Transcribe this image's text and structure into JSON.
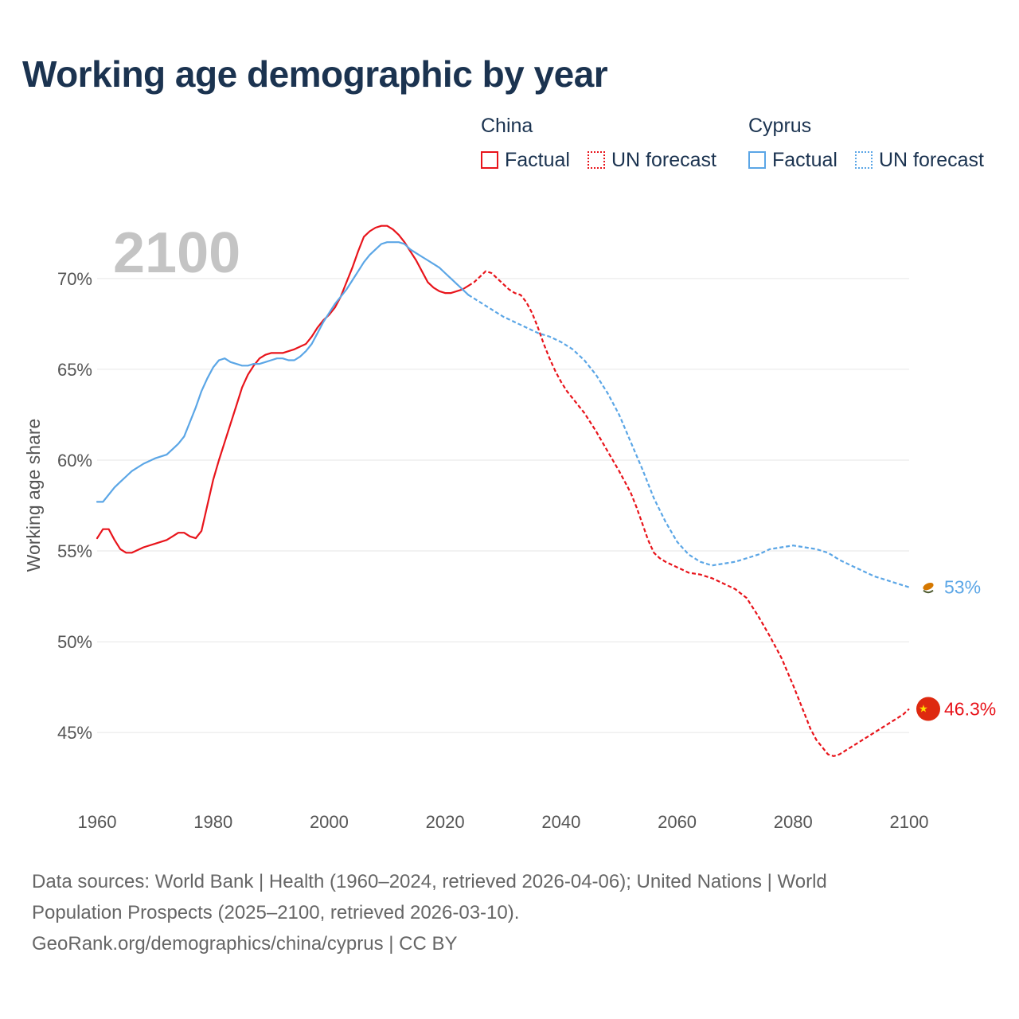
{
  "title": "Working age demographic by year",
  "legend": {
    "groups": [
      {
        "name": "China",
        "color": "#e8141b",
        "items": [
          {
            "label": "Factual",
            "style": "solid"
          },
          {
            "label": "UN forecast",
            "style": "dotted"
          }
        ]
      },
      {
        "name": "Cyprus",
        "color": "#5ba6e6",
        "items": [
          {
            "label": "Factual",
            "style": "solid"
          },
          {
            "label": "UN forecast",
            "style": "dotted"
          }
        ]
      }
    ]
  },
  "year_label": "2100",
  "chart_data": {
    "type": "line",
    "title": "Working age demographic by year",
    "xlabel": "",
    "ylabel": "Working age share",
    "xlim": [
      1960,
      2100
    ],
    "ylim": [
      41.5,
      73.5
    ],
    "x_ticks": [
      1960,
      1980,
      2000,
      2020,
      2040,
      2060,
      2080,
      2100
    ],
    "y_ticks": [
      45,
      50,
      55,
      60,
      65,
      70
    ],
    "y_tick_labels": [
      "45%",
      "50%",
      "55%",
      "60%",
      "65%",
      "70%"
    ],
    "factual_end_year": 2024,
    "grid": true,
    "series": [
      {
        "name": "China",
        "color": "#e8141b",
        "end_label": "46.3%",
        "flag_icon": "china-flag-icon",
        "points": [
          [
            1960,
            55.7
          ],
          [
            1961,
            56.2
          ],
          [
            1962,
            56.2
          ],
          [
            1963,
            55.6
          ],
          [
            1964,
            55.1
          ],
          [
            1965,
            54.9
          ],
          [
            1966,
            54.9
          ],
          [
            1968,
            55.2
          ],
          [
            1970,
            55.4
          ],
          [
            1972,
            55.6
          ],
          [
            1973,
            55.8
          ],
          [
            1974,
            56.0
          ],
          [
            1975,
            56.0
          ],
          [
            1976,
            55.8
          ],
          [
            1977,
            55.7
          ],
          [
            1978,
            56.1
          ],
          [
            1979,
            57.5
          ],
          [
            1980,
            58.9
          ],
          [
            1981,
            60.0
          ],
          [
            1982,
            61.0
          ],
          [
            1983,
            62.0
          ],
          [
            1984,
            63.0
          ],
          [
            1985,
            64.0
          ],
          [
            1986,
            64.7
          ],
          [
            1987,
            65.2
          ],
          [
            1988,
            65.6
          ],
          [
            1989,
            65.8
          ],
          [
            1990,
            65.9
          ],
          [
            1992,
            65.9
          ],
          [
            1994,
            66.1
          ],
          [
            1996,
            66.4
          ],
          [
            1997,
            66.8
          ],
          [
            1998,
            67.3
          ],
          [
            1999,
            67.7
          ],
          [
            2000,
            68.0
          ],
          [
            2001,
            68.4
          ],
          [
            2002,
            69.0
          ],
          [
            2003,
            69.8
          ],
          [
            2004,
            70.6
          ],
          [
            2005,
            71.5
          ],
          [
            2006,
            72.3
          ],
          [
            2007,
            72.6
          ],
          [
            2008,
            72.8
          ],
          [
            2009,
            72.9
          ],
          [
            2010,
            72.9
          ],
          [
            2011,
            72.7
          ],
          [
            2012,
            72.4
          ],
          [
            2013,
            72.0
          ],
          [
            2014,
            71.5
          ],
          [
            2015,
            71.0
          ],
          [
            2016,
            70.4
          ],
          [
            2017,
            69.8
          ],
          [
            2018,
            69.5
          ],
          [
            2019,
            69.3
          ],
          [
            2020,
            69.2
          ],
          [
            2021,
            69.2
          ],
          [
            2022,
            69.3
          ],
          [
            2023,
            69.4
          ],
          [
            2024,
            69.6
          ],
          [
            2025,
            69.8
          ],
          [
            2026,
            70.1
          ],
          [
            2027,
            70.4
          ],
          [
            2028,
            70.3
          ],
          [
            2029,
            70.0
          ],
          [
            2030,
            69.7
          ],
          [
            2031,
            69.4
          ],
          [
            2032,
            69.2
          ],
          [
            2033,
            69.1
          ],
          [
            2034,
            68.7
          ],
          [
            2035,
            68.1
          ],
          [
            2036,
            67.3
          ],
          [
            2037,
            66.4
          ],
          [
            2038,
            65.6
          ],
          [
            2039,
            64.9
          ],
          [
            2040,
            64.3
          ],
          [
            2041,
            63.8
          ],
          [
            2042,
            63.4
          ],
          [
            2044,
            62.6
          ],
          [
            2046,
            61.6
          ],
          [
            2048,
            60.5
          ],
          [
            2050,
            59.4
          ],
          [
            2052,
            58.2
          ],
          [
            2053,
            57.4
          ],
          [
            2054,
            56.5
          ],
          [
            2055,
            55.6
          ],
          [
            2056,
            54.9
          ],
          [
            2057,
            54.6
          ],
          [
            2058,
            54.4
          ],
          [
            2060,
            54.1
          ],
          [
            2062,
            53.8
          ],
          [
            2064,
            53.7
          ],
          [
            2066,
            53.5
          ],
          [
            2068,
            53.2
          ],
          [
            2070,
            52.9
          ],
          [
            2072,
            52.4
          ],
          [
            2074,
            51.4
          ],
          [
            2076,
            50.3
          ],
          [
            2078,
            49.1
          ],
          [
            2080,
            47.6
          ],
          [
            2082,
            46.0
          ],
          [
            2083,
            45.2
          ],
          [
            2084,
            44.6
          ],
          [
            2085,
            44.2
          ],
          [
            2086,
            43.8
          ],
          [
            2087,
            43.7
          ],
          [
            2088,
            43.8
          ],
          [
            2090,
            44.2
          ],
          [
            2092,
            44.6
          ],
          [
            2094,
            45.0
          ],
          [
            2096,
            45.4
          ],
          [
            2098,
            45.8
          ],
          [
            2099,
            46.0
          ],
          [
            2100,
            46.3
          ]
        ]
      },
      {
        "name": "Cyprus",
        "color": "#5ba6e6",
        "end_label": "53%",
        "flag_icon": "cyprus-flag-icon",
        "points": [
          [
            1960,
            57.7
          ],
          [
            1961,
            57.7
          ],
          [
            1962,
            58.1
          ],
          [
            1963,
            58.5
          ],
          [
            1964,
            58.8
          ],
          [
            1965,
            59.1
          ],
          [
            1966,
            59.4
          ],
          [
            1968,
            59.8
          ],
          [
            1970,
            60.1
          ],
          [
            1972,
            60.3
          ],
          [
            1973,
            60.6
          ],
          [
            1974,
            60.9
          ],
          [
            1975,
            61.3
          ],
          [
            1976,
            62.1
          ],
          [
            1977,
            62.9
          ],
          [
            1978,
            63.8
          ],
          [
            1979,
            64.5
          ],
          [
            1980,
            65.1
          ],
          [
            1981,
            65.5
          ],
          [
            1982,
            65.6
          ],
          [
            1983,
            65.4
          ],
          [
            1984,
            65.3
          ],
          [
            1985,
            65.2
          ],
          [
            1986,
            65.2
          ],
          [
            1987,
            65.3
          ],
          [
            1988,
            65.3
          ],
          [
            1989,
            65.4
          ],
          [
            1990,
            65.5
          ],
          [
            1991,
            65.6
          ],
          [
            1992,
            65.6
          ],
          [
            1993,
            65.5
          ],
          [
            1994,
            65.5
          ],
          [
            1995,
            65.7
          ],
          [
            1996,
            66.0
          ],
          [
            1997,
            66.4
          ],
          [
            1998,
            67.0
          ],
          [
            1999,
            67.6
          ],
          [
            2000,
            68.1
          ],
          [
            2001,
            68.6
          ],
          [
            2002,
            69.0
          ],
          [
            2003,
            69.4
          ],
          [
            2004,
            69.9
          ],
          [
            2005,
            70.4
          ],
          [
            2006,
            70.9
          ],
          [
            2007,
            71.3
          ],
          [
            2008,
            71.6
          ],
          [
            2009,
            71.9
          ],
          [
            2010,
            72.0
          ],
          [
            2011,
            72.0
          ],
          [
            2012,
            72.0
          ],
          [
            2013,
            71.9
          ],
          [
            2014,
            71.6
          ],
          [
            2015,
            71.4
          ],
          [
            2016,
            71.2
          ],
          [
            2017,
            71.0
          ],
          [
            2018,
            70.8
          ],
          [
            2019,
            70.6
          ],
          [
            2020,
            70.3
          ],
          [
            2021,
            70.0
          ],
          [
            2022,
            69.7
          ],
          [
            2023,
            69.4
          ],
          [
            2024,
            69.1
          ],
          [
            2025,
            68.9
          ],
          [
            2026,
            68.7
          ],
          [
            2027,
            68.5
          ],
          [
            2028,
            68.3
          ],
          [
            2029,
            68.1
          ],
          [
            2030,
            67.9
          ],
          [
            2032,
            67.6
          ],
          [
            2034,
            67.3
          ],
          [
            2036,
            67.0
          ],
          [
            2038,
            66.8
          ],
          [
            2040,
            66.5
          ],
          [
            2042,
            66.1
          ],
          [
            2044,
            65.5
          ],
          [
            2046,
            64.7
          ],
          [
            2048,
            63.7
          ],
          [
            2050,
            62.5
          ],
          [
            2052,
            61.0
          ],
          [
            2054,
            59.5
          ],
          [
            2056,
            57.9
          ],
          [
            2058,
            56.6
          ],
          [
            2060,
            55.5
          ],
          [
            2062,
            54.8
          ],
          [
            2064,
            54.4
          ],
          [
            2066,
            54.2
          ],
          [
            2068,
            54.3
          ],
          [
            2070,
            54.4
          ],
          [
            2072,
            54.6
          ],
          [
            2074,
            54.8
          ],
          [
            2076,
            55.1
          ],
          [
            2078,
            55.2
          ],
          [
            2080,
            55.3
          ],
          [
            2082,
            55.2
          ],
          [
            2084,
            55.1
          ],
          [
            2086,
            54.9
          ],
          [
            2088,
            54.5
          ],
          [
            2090,
            54.2
          ],
          [
            2092,
            53.9
          ],
          [
            2094,
            53.6
          ],
          [
            2096,
            53.4
          ],
          [
            2098,
            53.2
          ],
          [
            2100,
            53.0
          ]
        ]
      }
    ]
  },
  "footer": {
    "line1": "Data sources: World Bank | Health (1960–2024, retrieved 2026-04-06); United Nations | World",
    "line2": "Population Prospects (2025–2100, retrieved 2026-03-10).",
    "line3": "GeoRank.org/demographics/china/cyprus | CC BY"
  }
}
